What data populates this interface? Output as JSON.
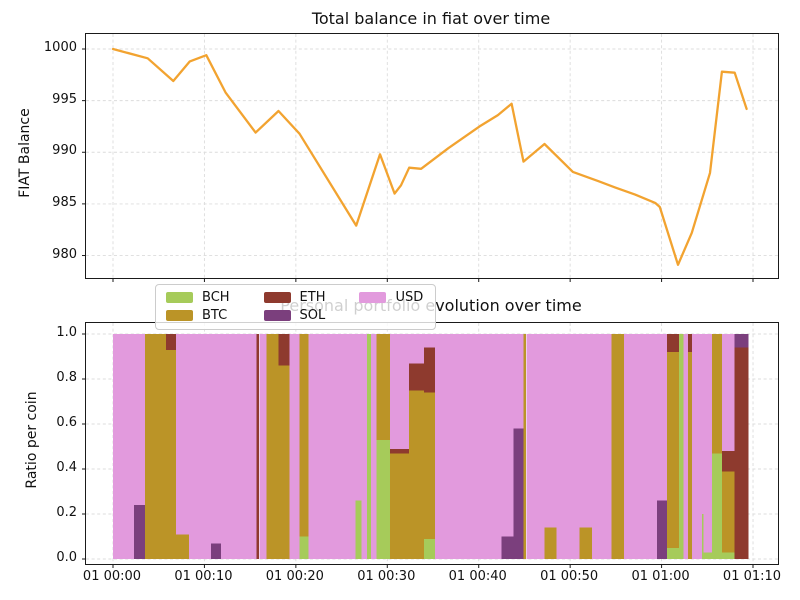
{
  "figure": {
    "background": "#ffffff"
  },
  "legend": {
    "position": "upper left",
    "entries": [
      "BCH",
      "BTC",
      "ETH",
      "SOL",
      "USD"
    ]
  },
  "coin_colors": {
    "BCH": "#a6cb5a",
    "BTC": "#bb9427",
    "ETH": "#8e3a2e",
    "SOL": "#7b3f7d",
    "USD": "#e29add"
  },
  "chart_data": [
    {
      "type": "line",
      "title": "Total balance in fiat over time",
      "xlabel": "",
      "ylabel": "FIAT Balance",
      "series_name": "Total balance in fiat",
      "line_color": "#f2a330",
      "grid": true,
      "x_unit": "minutes after 01 00:00",
      "ylim": [
        977.8,
        1001.5
      ],
      "yticks": [
        {
          "v": 980,
          "label": "980"
        },
        {
          "v": 985,
          "label": "985"
        },
        {
          "v": 990,
          "label": "990"
        },
        {
          "v": 995,
          "label": "995"
        },
        {
          "v": 1000,
          "label": "1000"
        }
      ],
      "xticks": [
        {
          "t": 0,
          "label": ""
        },
        {
          "t": 10,
          "label": ""
        },
        {
          "t": 20,
          "label": ""
        },
        {
          "t": 30,
          "label": ""
        },
        {
          "t": 40,
          "label": ""
        },
        {
          "t": 50,
          "label": ""
        },
        {
          "t": 60,
          "label": ""
        },
        {
          "t": 70,
          "label": ""
        }
      ],
      "points": [
        [
          0,
          1000.0
        ],
        [
          3.8,
          999.1
        ],
        [
          6.6,
          996.9
        ],
        [
          8.4,
          998.8
        ],
        [
          10.2,
          999.4
        ],
        [
          12.3,
          995.8
        ],
        [
          15.6,
          991.9
        ],
        [
          18.1,
          994.0
        ],
        [
          20.4,
          991.8
        ],
        [
          26.6,
          982.9
        ],
        [
          29.2,
          989.8
        ],
        [
          30.8,
          986.0
        ],
        [
          31.5,
          986.8
        ],
        [
          32.4,
          988.5
        ],
        [
          33.7,
          988.4
        ],
        [
          36.7,
          990.4
        ],
        [
          40.1,
          992.5
        ],
        [
          42.1,
          993.6
        ],
        [
          43.6,
          994.7
        ],
        [
          44.9,
          989.1
        ],
        [
          47.2,
          990.8
        ],
        [
          50.3,
          988.1
        ],
        [
          53.1,
          987.2
        ],
        [
          54.9,
          986.6
        ],
        [
          57.1,
          985.9
        ],
        [
          59.3,
          985.1
        ],
        [
          59.8,
          984.7
        ],
        [
          61.8,
          979.1
        ],
        [
          63.3,
          982.2
        ],
        [
          65.3,
          988.0
        ],
        [
          66.6,
          997.8
        ],
        [
          68.0,
          997.7
        ],
        [
          69.3,
          994.2
        ]
      ]
    },
    {
      "type": "bar",
      "stacked": true,
      "title": "Personal portfolio evolution over time",
      "xlabel": "",
      "ylabel": "Ratio per coin",
      "grid": true,
      "legend_position": "upper left",
      "ylim": [
        -0.02,
        1.05
      ],
      "yticks": [
        {
          "v": 0.0,
          "label": "0.0"
        },
        {
          "v": 0.2,
          "label": "0.2"
        },
        {
          "v": 0.4,
          "label": "0.4"
        },
        {
          "v": 0.6,
          "label": "0.6"
        },
        {
          "v": 0.8,
          "label": "0.8"
        },
        {
          "v": 1.0,
          "label": "1.0"
        }
      ],
      "xticks": [
        {
          "t": 0,
          "label": "01 00:00"
        },
        {
          "t": 10,
          "label": "01 00:10"
        },
        {
          "t": 20,
          "label": "01 00:20"
        },
        {
          "t": 30,
          "label": "01 00:30"
        },
        {
          "t": 40,
          "label": "01 00:40"
        },
        {
          "t": 50,
          "label": "01 00:50"
        },
        {
          "t": 60,
          "label": "01 01:00"
        },
        {
          "t": 70,
          "label": "01 01:10"
        }
      ],
      "stack_order": [
        "BCH",
        "BTC",
        "ETH",
        "SOL",
        "USD"
      ],
      "bars": [
        {
          "t0": 0.0,
          "t1": 2.3,
          "stack": {
            "USD": 1.0
          }
        },
        {
          "t0": 2.3,
          "t1": 3.5,
          "stack": {
            "SOL": 0.24,
            "USD": 0.76
          }
        },
        {
          "t0": 3.5,
          "t1": 5.8,
          "stack": {
            "BTC": 1.0
          }
        },
        {
          "t0": 5.8,
          "t1": 6.9,
          "stack": {
            "BTC": 0.93,
            "ETH": 0.07
          }
        },
        {
          "t0": 6.9,
          "t1": 8.3,
          "stack": {
            "BTC": 0.11,
            "USD": 0.89
          }
        },
        {
          "t0": 8.3,
          "t1": 10.7,
          "stack": {
            "USD": 1.0
          }
        },
        {
          "t0": 10.7,
          "t1": 11.8,
          "stack": {
            "SOL": 0.07,
            "USD": 0.93
          }
        },
        {
          "t0": 11.8,
          "t1": 15.7,
          "stack": {
            "USD": 1.0
          }
        },
        {
          "t0": 15.7,
          "t1": 16.0,
          "stack": {
            "ETH": 1.0
          }
        },
        {
          "t0": 16.0,
          "t1": 16.8,
          "stack": {
            "USD": 1.0
          }
        },
        {
          "t0": 16.8,
          "t1": 18.1,
          "stack": {
            "BTC": 1.0
          }
        },
        {
          "t0": 18.1,
          "t1": 19.3,
          "stack": {
            "BTC": 0.86,
            "ETH": 0.14
          }
        },
        {
          "t0": 19.3,
          "t1": 20.4,
          "stack": {
            "USD": 1.0
          }
        },
        {
          "t0": 20.4,
          "t1": 21.4,
          "stack": {
            "BCH": 0.1,
            "BTC": 0.9
          }
        },
        {
          "t0": 21.4,
          "t1": 26.5,
          "stack": {
            "USD": 1.0
          }
        },
        {
          "t0": 26.5,
          "t1": 27.2,
          "stack": {
            "BCH": 0.26,
            "USD": 0.74
          }
        },
        {
          "t0": 27.2,
          "t1": 27.8,
          "stack": {
            "USD": 1.0
          }
        },
        {
          "t0": 27.8,
          "t1": 28.2,
          "stack": {
            "BCH": 1.0
          }
        },
        {
          "t0": 28.2,
          "t1": 28.8,
          "stack": {
            "USD": 1.0
          }
        },
        {
          "t0": 28.8,
          "t1": 30.3,
          "stack": {
            "BCH": 0.53,
            "BTC": 0.47
          }
        },
        {
          "t0": 30.3,
          "t1": 32.4,
          "stack": {
            "BTC": 0.47,
            "ETH": 0.02,
            "USD": 0.51
          }
        },
        {
          "t0": 32.4,
          "t1": 34.0,
          "stack": {
            "BTC": 0.75,
            "ETH": 0.12,
            "USD": 0.13
          }
        },
        {
          "t0": 34.0,
          "t1": 35.2,
          "stack": {
            "BCH": 0.09,
            "BTC": 0.65,
            "ETH": 0.2,
            "USD": 0.06
          }
        },
        {
          "t0": 35.2,
          "t1": 42.5,
          "stack": {
            "USD": 1.0
          }
        },
        {
          "t0": 42.5,
          "t1": 43.8,
          "stack": {
            "SOL": 0.1,
            "USD": 0.9
          }
        },
        {
          "t0": 43.8,
          "t1": 44.9,
          "stack": {
            "SOL": 0.58,
            "USD": 0.42
          }
        },
        {
          "t0": 44.9,
          "t1": 45.2,
          "stack": {
            "BTC": 1.0
          }
        },
        {
          "t0": 45.2,
          "t1": 47.2,
          "stack": {
            "USD": 1.0
          }
        },
        {
          "t0": 47.2,
          "t1": 48.5,
          "stack": {
            "BTC": 0.14,
            "USD": 0.86
          }
        },
        {
          "t0": 48.5,
          "t1": 51.0,
          "stack": {
            "USD": 1.0
          }
        },
        {
          "t0": 51.0,
          "t1": 52.4,
          "stack": {
            "BTC": 0.14,
            "USD": 0.86
          }
        },
        {
          "t0": 52.4,
          "t1": 54.5,
          "stack": {
            "USD": 1.0
          }
        },
        {
          "t0": 54.5,
          "t1": 55.9,
          "stack": {
            "BTC": 1.0
          }
        },
        {
          "t0": 55.9,
          "t1": 59.5,
          "stack": {
            "USD": 1.0
          }
        },
        {
          "t0": 59.5,
          "t1": 60.6,
          "stack": {
            "SOL": 0.26,
            "USD": 0.74
          }
        },
        {
          "t0": 60.6,
          "t1": 61.9,
          "stack": {
            "BCH": 0.05,
            "BTC": 0.87,
            "ETH": 0.08
          }
        },
        {
          "t0": 61.9,
          "t1": 62.4,
          "stack": {
            "BCH": 1.0
          }
        },
        {
          "t0": 62.4,
          "t1": 62.9,
          "stack": {
            "USD": 1.0
          }
        },
        {
          "t0": 62.9,
          "t1": 63.3,
          "stack": {
            "BTC": 0.92,
            "ETH": 0.08
          }
        },
        {
          "t0": 63.3,
          "t1": 64.4,
          "stack": {
            "USD": 1.0
          }
        },
        {
          "t0": 64.4,
          "t1": 64.6,
          "stack": {
            "BCH": 0.2,
            "USD": 0.8
          }
        },
        {
          "t0": 64.6,
          "t1": 65.5,
          "stack": {
            "BCH": 0.03,
            "USD": 0.97
          }
        },
        {
          "t0": 65.5,
          "t1": 66.6,
          "stack": {
            "BCH": 0.47,
            "BTC": 0.53
          }
        },
        {
          "t0": 66.6,
          "t1": 68.0,
          "stack": {
            "BCH": 0.03,
            "BTC": 0.36,
            "ETH": 0.09,
            "USD": 0.52
          }
        },
        {
          "t0": 68.0,
          "t1": 69.5,
          "stack": {
            "ETH": 0.94,
            "SOL": 0.06
          }
        }
      ]
    }
  ]
}
